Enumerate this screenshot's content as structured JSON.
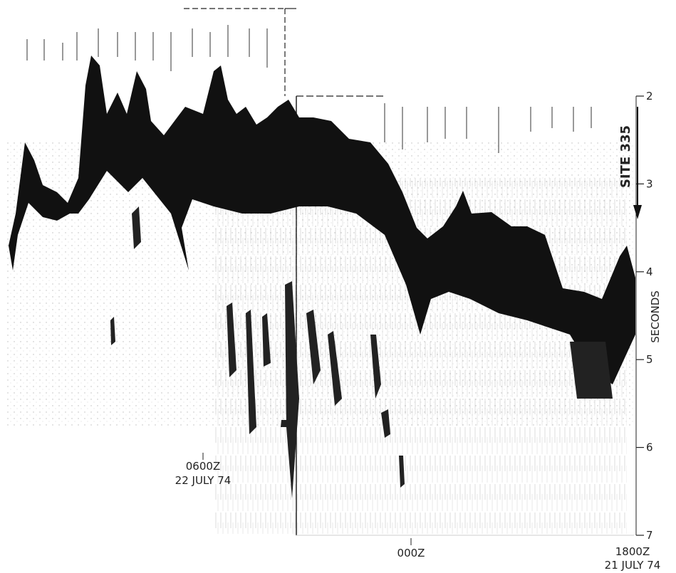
{
  "axis": {
    "title": "SECONDS",
    "ticks": [
      2,
      3,
      4,
      5,
      6,
      7
    ]
  },
  "site_label": "SITE 335",
  "time_marks": [
    {
      "time": "0600Z",
      "date": "22 JULY 74"
    },
    {
      "time": "000Z"
    },
    {
      "time": "1800Z",
      "date": "21 JULY 74"
    }
  ]
}
